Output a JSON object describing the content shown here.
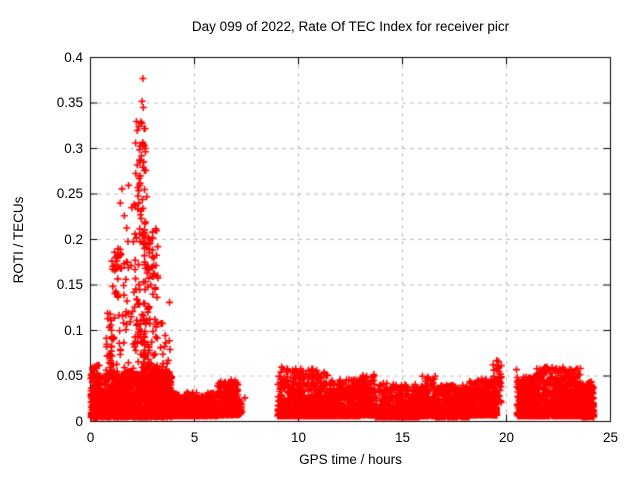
{
  "chart_data": {
    "type": "scatter",
    "title": "Day 099 of 2022, Rate Of TEC Index for receiver picr",
    "xlabel": "GPS time / hours",
    "ylabel": "ROTI / TECUs",
    "xlim": [
      0,
      25
    ],
    "ylim": [
      0,
      0.4
    ],
    "xticks": [
      0,
      5,
      10,
      15,
      20,
      25
    ],
    "xtick_labels": [
      "0",
      "5",
      "10",
      "15",
      "20",
      "25"
    ],
    "yticks": [
      0,
      0.05,
      0.1,
      0.15,
      0.2,
      0.25,
      0.3,
      0.35,
      0.4
    ],
    "ytick_labels": [
      "0",
      "0.05",
      "0.1",
      "0.15",
      "0.2",
      "0.25",
      "0.3",
      "0.35",
      "0.4"
    ],
    "grid": "dashed-major-both-axes",
    "legend": "none",
    "marker": {
      "shape": "plus",
      "color": "#ff0000",
      "size": 7
    },
    "colors": {
      "frame": "#000000",
      "grid": "#b0b0b0",
      "background": "#ffffff",
      "text": "#000000"
    },
    "seed": 20220099,
    "clusters": [
      {
        "x0": 0.02,
        "x1": 0.35,
        "n": 130,
        "ymin": 0.004,
        "ymax": 0.054,
        "pow": 1.3
      },
      {
        "x0": 0.05,
        "x1": 0.45,
        "n": 8,
        "ymin": 0.05,
        "ymax": 0.062,
        "pow": 1.0
      },
      {
        "x0": 0.3,
        "x1": 1.0,
        "n": 250,
        "ymin": 0.005,
        "ymax": 0.05,
        "pow": 1.9
      },
      {
        "x0": 1.0,
        "x1": 3.9,
        "n": 1200,
        "ymin": 0.005,
        "ymax": 0.055,
        "pow": 1.8
      },
      {
        "x0": 3.9,
        "x1": 6.1,
        "n": 520,
        "ymin": 0.006,
        "ymax": 0.032,
        "pow": 2.0
      },
      {
        "x0": 6.1,
        "x1": 7.1,
        "n": 270,
        "ymin": 0.007,
        "ymax": 0.046,
        "pow": 2.2
      },
      {
        "x0": 7.1,
        "x1": 7.3,
        "n": 25,
        "ymin": 0.008,
        "ymax": 0.026,
        "pow": 2.0
      },
      {
        "x0": 9.0,
        "x1": 9.6,
        "n": 150,
        "ymin": 0.006,
        "ymax": 0.06,
        "pow": 2.6
      },
      {
        "x0": 9.6,
        "x1": 11.4,
        "n": 500,
        "ymin": 0.006,
        "ymax": 0.058,
        "pow": 2.6
      },
      {
        "x0": 11.4,
        "x1": 13.0,
        "n": 430,
        "ymin": 0.006,
        "ymax": 0.046,
        "pow": 2.4
      },
      {
        "x0": 13.0,
        "x1": 13.7,
        "n": 200,
        "ymin": 0.007,
        "ymax": 0.052,
        "pow": 2.4
      },
      {
        "x0": 13.7,
        "x1": 15.8,
        "n": 540,
        "ymin": 0.005,
        "ymax": 0.042,
        "pow": 2.4
      },
      {
        "x0": 15.8,
        "x1": 16.6,
        "n": 220,
        "ymin": 0.006,
        "ymax": 0.05,
        "pow": 2.4
      },
      {
        "x0": 16.6,
        "x1": 18.2,
        "n": 430,
        "ymin": 0.005,
        "ymax": 0.04,
        "pow": 2.2
      },
      {
        "x0": 18.2,
        "x1": 19.55,
        "n": 390,
        "ymin": 0.007,
        "ymax": 0.047,
        "pow": 2.2
      },
      {
        "x0": 19.35,
        "x1": 19.75,
        "n": 45,
        "ymin": 0.02,
        "ymax": 0.068,
        "pow": 1.5
      },
      {
        "x0": 20.5,
        "x1": 21.4,
        "n": 260,
        "ymin": 0.006,
        "ymax": 0.05,
        "pow": 2.0
      },
      {
        "x0": 21.4,
        "x1": 23.6,
        "n": 720,
        "ymin": 0.006,
        "ymax": 0.06,
        "pow": 2.2
      },
      {
        "x0": 23.6,
        "x1": 24.2,
        "n": 210,
        "ymin": 0.005,
        "ymax": 0.044,
        "pow": 2.2
      },
      {
        "x0": 0.75,
        "x1": 1.05,
        "n": 25,
        "ymin": 0.05,
        "ymax": 0.12,
        "pow": 1.6
      },
      {
        "x0": 0.95,
        "x1": 1.45,
        "n": 30,
        "ymin": 0.05,
        "ymax": 0.19,
        "pow": 1.4
      },
      {
        "x0": 1.05,
        "x1": 1.4,
        "n": 12,
        "ymin": 0.14,
        "ymax": 0.19,
        "pow": 1.0
      },
      {
        "x0": 1.4,
        "x1": 2.15,
        "n": 55,
        "ymin": 0.05,
        "ymax": 0.26,
        "pow": 1.8
      },
      {
        "x0": 2.15,
        "x1": 2.65,
        "n": 85,
        "ymin": 0.05,
        "ymax": 0.33,
        "pow": 1.3
      },
      {
        "x0": 2.3,
        "x1": 2.62,
        "n": 14,
        "ymin": 0.2,
        "ymax": 0.31,
        "pow": 1.0
      },
      {
        "x0": 2.55,
        "x1": 3.25,
        "n": 85,
        "ymin": 0.05,
        "ymax": 0.215,
        "pow": 1.5
      },
      {
        "x0": 2.75,
        "x1": 3.1,
        "n": 14,
        "ymin": 0.15,
        "ymax": 0.205,
        "pow": 1.0
      },
      {
        "x0": 3.2,
        "x1": 3.85,
        "n": 28,
        "ymin": 0.05,
        "ymax": 0.135,
        "pow": 1.8
      }
    ],
    "points": [
      [
        2.52,
        0.377
      ],
      [
        2.48,
        0.352
      ],
      [
        2.54,
        0.345
      ],
      [
        2.42,
        0.329
      ],
      [
        2.58,
        0.322
      ],
      [
        2.5,
        0.305
      ],
      [
        2.63,
        0.3
      ],
      [
        2.45,
        0.292
      ],
      [
        2.56,
        0.285
      ],
      [
        2.66,
        0.276
      ],
      [
        2.38,
        0.262
      ],
      [
        2.6,
        0.255
      ],
      [
        2.7,
        0.247
      ],
      [
        2.33,
        0.24
      ],
      [
        7.42,
        0.026
      ],
      [
        20.48,
        0.057
      ],
      [
        19.62,
        0.066
      ],
      [
        19.58,
        0.061
      ],
      [
        9.45,
        0.058
      ],
      [
        0.1,
        0.057
      ]
    ]
  }
}
